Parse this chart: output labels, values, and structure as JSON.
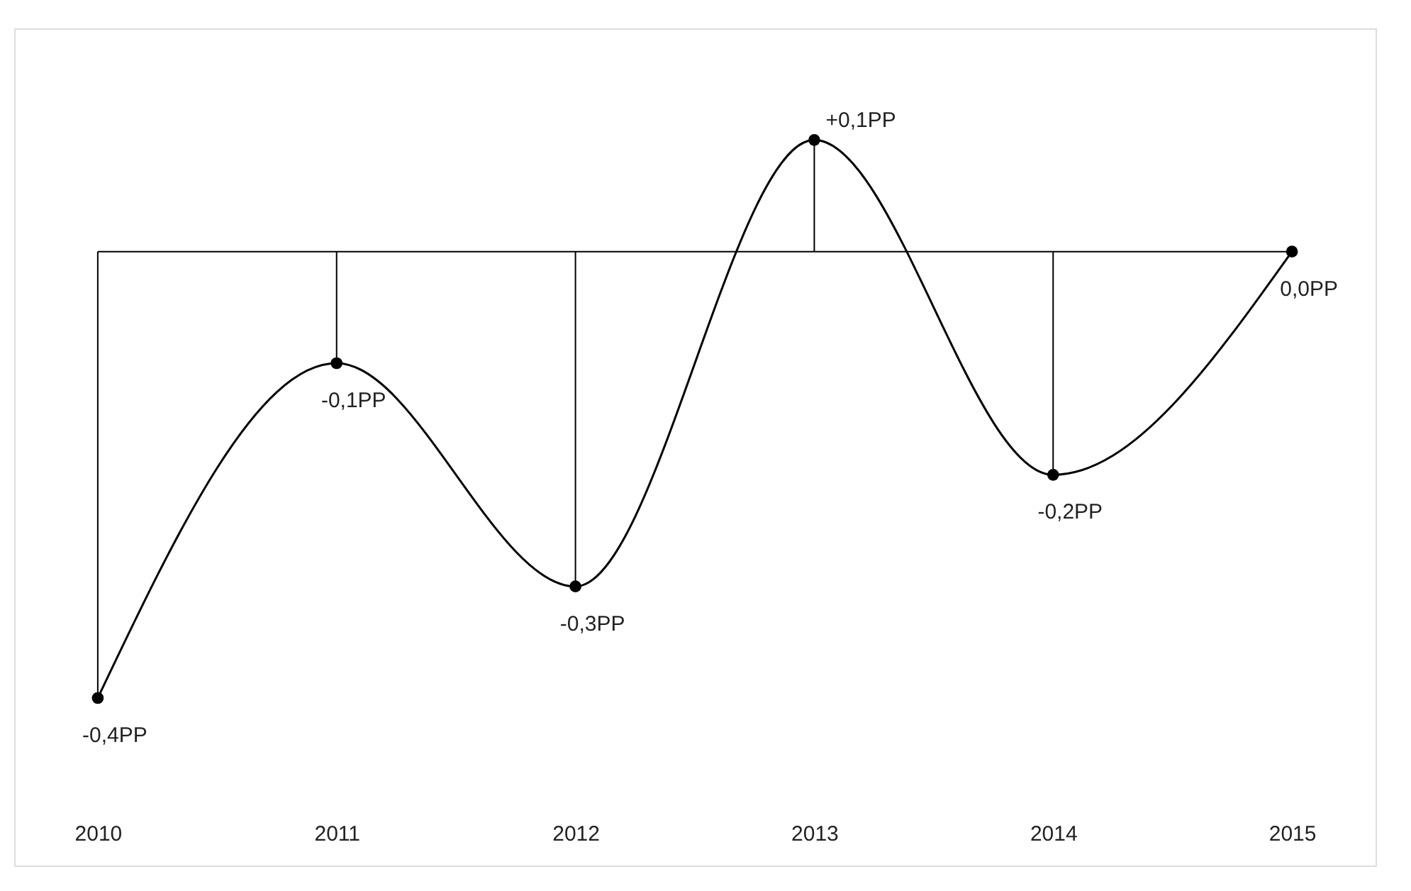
{
  "chart_data": {
    "type": "line",
    "categories": [
      "2010",
      "2011",
      "2012",
      "2013",
      "2014",
      "2015"
    ],
    "series": [
      {
        "color": "#000000",
        "values": [
          -0.4,
          -0.1,
          -0.3,
          0.1,
          -0.2,
          0.0
        ],
        "value_labels": [
          "-0,4PP",
          "-0,1PP",
          "-0,3PP",
          "+0,1PP",
          "-0,2PP",
          "0,0PP"
        ]
      }
    ],
    "ylim": [
      -0.55,
      0.2
    ],
    "ref_lines": [
      {
        "axis": "y",
        "value": 0,
        "label": null
      }
    ],
    "marker": "circle",
    "line_style": "solid",
    "grid": false,
    "tick_labels": "x"
  }
}
